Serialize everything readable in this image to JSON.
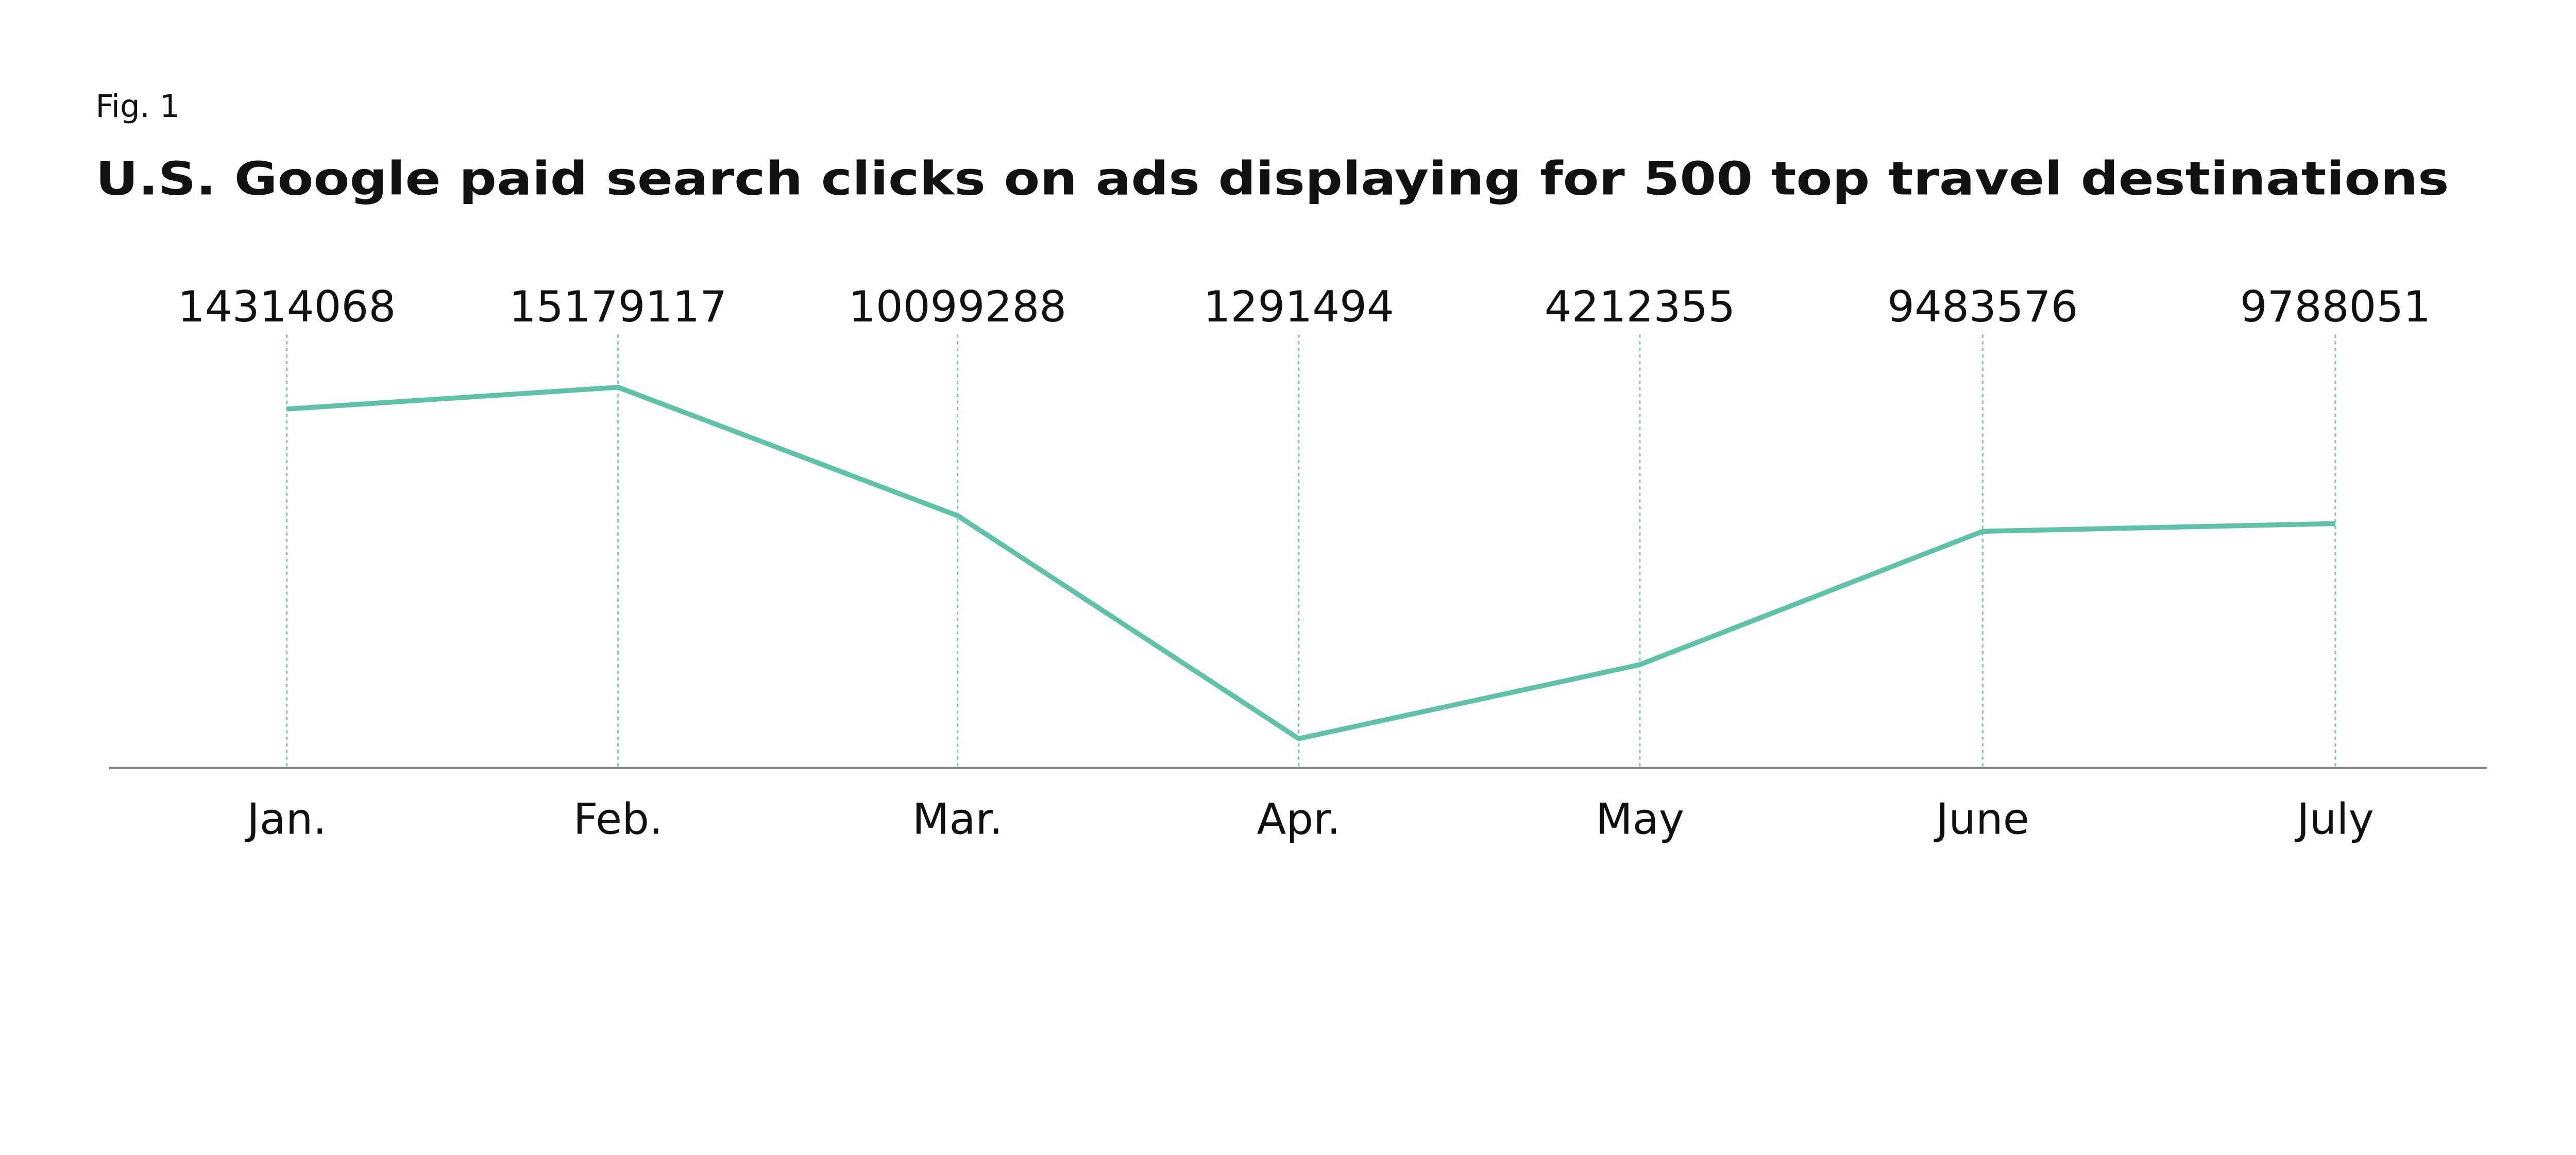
{
  "figure_label": "Fig. 1",
  "chart_data": {
    "type": "line",
    "title": "U.S. Google paid search clicks on ads displaying for 500 top travel destinations",
    "xlabel": "",
    "ylabel": "",
    "categories": [
      "Jan.",
      "Feb.",
      "Mar.",
      "Apr.",
      "May",
      "June",
      "July"
    ],
    "values": [
      14314068,
      15179117,
      10099288,
      1291494,
      4212355,
      9483576,
      9788051
    ],
    "data_labels": [
      "14314068",
      "15179117",
      "10099288",
      "1291494",
      "4212355",
      "9483576",
      "9788051"
    ],
    "ylim": [
      0,
      17000000
    ],
    "grid": "vertical dotted guide lines at each category",
    "legend": "none",
    "colors": {
      "line": "#5fc1a9",
      "guide": "#7fc9b8",
      "axis": "#888888",
      "text": "#111111"
    }
  }
}
